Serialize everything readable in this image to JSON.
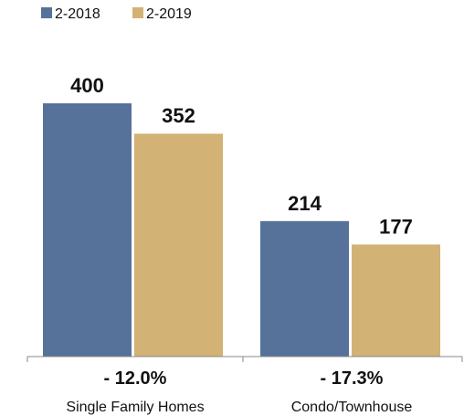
{
  "chart_data": {
    "type": "bar",
    "categories": [
      "Single Family Homes",
      "Condo/Townhouse"
    ],
    "series": [
      {
        "name": "2-2018",
        "values": [
          400,
          214
        ],
        "color": "#56719a"
      },
      {
        "name": "2-2019",
        "values": [
          352,
          177
        ],
        "color": "#d2b275"
      }
    ],
    "change_labels": [
      "- 12.0%",
      "- 17.3%"
    ],
    "ylim": [
      0,
      400
    ],
    "grid": false,
    "legend_position": "top-left"
  }
}
